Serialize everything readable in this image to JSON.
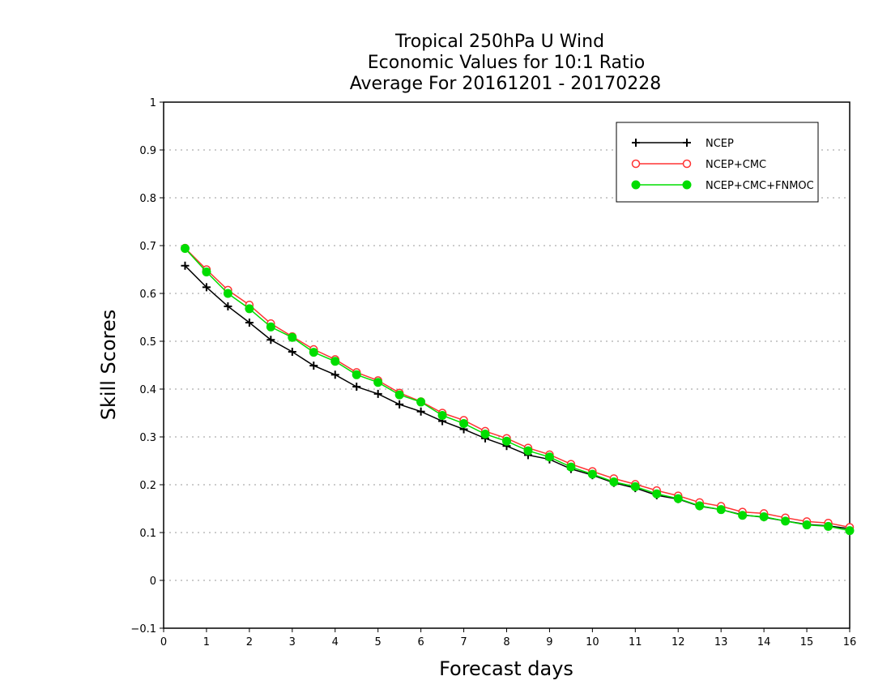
{
  "chart_data": {
    "type": "line",
    "title": [
      "Tropical 250hPa U Wind",
      "Economic Values for 10:1 Ratio",
      "Average For 20161201 - 20170228"
    ],
    "xlabel": "Forecast days",
    "ylabel": "Skill Scores",
    "xlim": [
      0,
      16
    ],
    "ylim": [
      -0.1,
      1
    ],
    "xticks": [
      "0",
      "1",
      "2",
      "3",
      "4",
      "5",
      "6",
      "7",
      "8",
      "9",
      "10",
      "11",
      "12",
      "13",
      "14",
      "15",
      "16"
    ],
    "yticks": [
      "−0.1",
      "0",
      "0.1",
      "0.2",
      "0.3",
      "0.4",
      "0.5",
      "0.6",
      "0.7",
      "0.8",
      "0.9",
      "1"
    ],
    "grid": "horizontal dotted",
    "legend_position": "top-right",
    "x": [
      0.5,
      1,
      1.5,
      2,
      2.5,
      3,
      3.5,
      4,
      4.5,
      5,
      5.5,
      6,
      6.5,
      7,
      7.5,
      8,
      8.5,
      9,
      9.5,
      10,
      10.5,
      11,
      11.5,
      12,
      12.5,
      13,
      13.5,
      14,
      14.5,
      15,
      15.5,
      16
    ],
    "series": [
      {
        "name": "NCEP",
        "color": "#000000",
        "marker": "plus",
        "values": [
          0.658,
          0.613,
          0.573,
          0.539,
          0.503,
          0.478,
          0.449,
          0.43,
          0.405,
          0.39,
          0.368,
          0.353,
          0.333,
          0.316,
          0.297,
          0.281,
          0.262,
          0.253,
          0.233,
          0.22,
          0.204,
          0.193,
          0.178,
          0.17,
          0.155,
          0.148,
          0.137,
          0.132,
          0.124,
          0.117,
          0.114,
          0.108
        ]
      },
      {
        "name": "NCEP+CMC",
        "color": "#ff3333",
        "marker": "open-circle",
        "values": [
          0.695,
          0.65,
          0.607,
          0.576,
          0.537,
          0.51,
          0.483,
          0.462,
          0.435,
          0.418,
          0.392,
          0.374,
          0.35,
          0.335,
          0.312,
          0.297,
          0.277,
          0.263,
          0.243,
          0.228,
          0.213,
          0.201,
          0.188,
          0.177,
          0.163,
          0.155,
          0.143,
          0.14,
          0.131,
          0.123,
          0.12,
          0.111
        ]
      },
      {
        "name": "NCEP+CMC+FNMOC",
        "color": "#00dd00",
        "marker": "filled-circle",
        "values": [
          0.694,
          0.645,
          0.6,
          0.568,
          0.53,
          0.508,
          0.477,
          0.458,
          0.43,
          0.414,
          0.388,
          0.373,
          0.345,
          0.328,
          0.306,
          0.291,
          0.271,
          0.258,
          0.237,
          0.222,
          0.206,
          0.196,
          0.181,
          0.171,
          0.156,
          0.148,
          0.136,
          0.133,
          0.124,
          0.116,
          0.113,
          0.104
        ]
      }
    ]
  }
}
